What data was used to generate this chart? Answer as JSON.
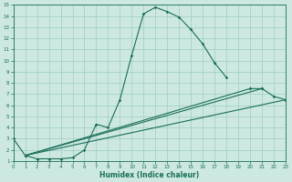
{
  "xlabel": "Humidex (Indice chaleur)",
  "xlim": [
    0,
    23
  ],
  "ylim": [
    1,
    15
  ],
  "xticks": [
    0,
    1,
    2,
    3,
    4,
    5,
    6,
    7,
    8,
    9,
    10,
    11,
    12,
    13,
    14,
    15,
    16,
    17,
    18,
    19,
    20,
    21,
    22,
    23
  ],
  "yticks": [
    1,
    2,
    3,
    4,
    5,
    6,
    7,
    8,
    9,
    10,
    11,
    12,
    13,
    14,
    15
  ],
  "background_color": "#cce8e0",
  "grid_color": "#9ecec4",
  "line_color": "#1a6e5a",
  "main_line": {
    "x": [
      0,
      1,
      2,
      3,
      4,
      5,
      6,
      7,
      8,
      9,
      10,
      11,
      12,
      13,
      14,
      15,
      16,
      17,
      18
    ],
    "y": [
      3,
      1.5,
      1.2,
      1.2,
      1.2,
      1.3,
      2.0,
      4.3,
      4.0,
      6.5,
      10.5,
      14.2,
      14.8,
      14.4,
      13.9,
      12.8,
      11.5,
      9.8,
      8.5
    ]
  },
  "flat_lines": [
    {
      "x": [
        1,
        20
      ],
      "y": [
        1.5,
        7.5
      ]
    },
    {
      "x": [
        1,
        21
      ],
      "y": [
        1.5,
        7.5
      ]
    },
    {
      "x": [
        1,
        23
      ],
      "y": [
        1.5,
        6.5
      ]
    }
  ],
  "flat_end_markers": [
    {
      "x": [
        20,
        21,
        22,
        23
      ],
      "y": [
        7.5,
        7.5,
        6.8,
        6.5
      ]
    }
  ]
}
